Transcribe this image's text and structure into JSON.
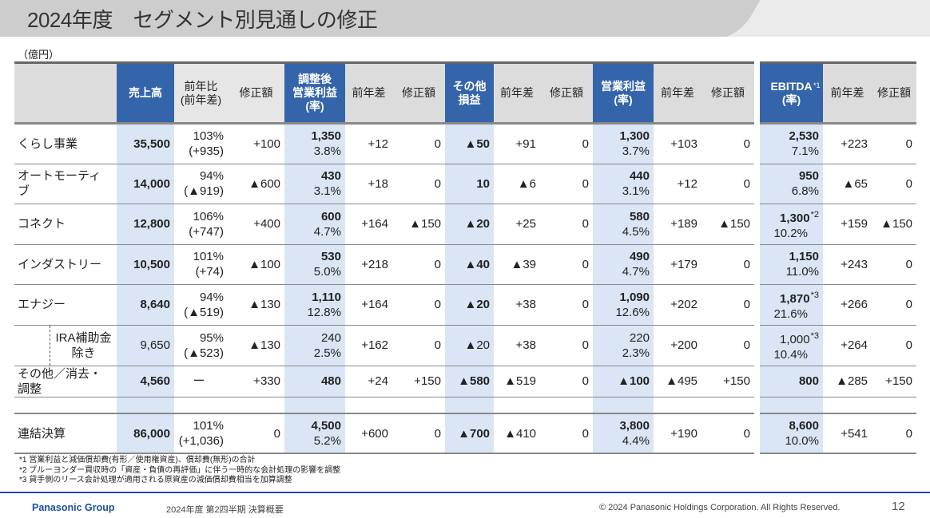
{
  "title": "2024年度　セグメント別見通しの修正",
  "unit": "（億円）",
  "headers": [
    {
      "text": "",
      "cls": ""
    },
    {
      "text": "売上高",
      "cls": "hl"
    },
    {
      "text": "前年比\n(前年差)",
      "cls": "g1"
    },
    {
      "text": "修正額",
      "cls": "g1"
    },
    {
      "text": "調整後\n営業利益\n(率)",
      "cls": "hl"
    },
    {
      "text": "前年差",
      "cls": ""
    },
    {
      "text": "修正額",
      "cls": ""
    },
    {
      "text": "その他\n損益",
      "cls": "hl"
    },
    {
      "text": "前年差",
      "cls": ""
    },
    {
      "text": "修正額",
      "cls": ""
    },
    {
      "text": "営業利益\n(率)",
      "cls": "hl"
    },
    {
      "text": "前年差",
      "cls": ""
    },
    {
      "text": "修正額",
      "cls": ""
    },
    {
      "text": "",
      "cls": "sp"
    },
    {
      "text": "EBITDA\n(率)",
      "cls": "hl",
      "sup": "*1"
    },
    {
      "text": "前年差",
      "cls": ""
    },
    {
      "text": "修正額",
      "cls": ""
    }
  ],
  "rows": [
    {
      "label": "くらし事業",
      "cells": [
        [
          "35,500"
        ],
        [
          "103%",
          "(+935)"
        ],
        [
          "+100"
        ],
        [
          "1,350",
          "3.8%"
        ],
        [
          "+12"
        ],
        [
          "0"
        ],
        [
          "▲50"
        ],
        [
          "+91"
        ],
        [
          "0"
        ],
        [
          "1,300",
          "3.7%"
        ],
        [
          "+103"
        ],
        [
          "0"
        ],
        [
          "2,530",
          "7.1%"
        ],
        [
          "+223"
        ],
        [
          "0"
        ]
      ]
    },
    {
      "label": "オートモーティブ",
      "cells": [
        [
          "14,000"
        ],
        [
          "94%",
          "(▲919)"
        ],
        [
          "▲600"
        ],
        [
          "430",
          "3.1%"
        ],
        [
          "+18"
        ],
        [
          "0"
        ],
        [
          "10"
        ],
        [
          "▲6"
        ],
        [
          "0"
        ],
        [
          "440",
          "3.1%"
        ],
        [
          "+12"
        ],
        [
          "0"
        ],
        [
          "950",
          "6.8%"
        ],
        [
          "▲65"
        ],
        [
          "0"
        ]
      ]
    },
    {
      "label": "コネクト",
      "cells": [
        [
          "12,800"
        ],
        [
          "106%",
          "(+747)"
        ],
        [
          "+400"
        ],
        [
          "600",
          "4.7%"
        ],
        [
          "+164"
        ],
        [
          "▲150"
        ],
        [
          "▲20"
        ],
        [
          "+25"
        ],
        [
          "0"
        ],
        [
          "580",
          "4.5%"
        ],
        [
          "+189"
        ],
        [
          "▲150"
        ],
        [
          "1,300",
          "10.2%",
          "*2"
        ],
        [
          "+159"
        ],
        [
          "▲150"
        ]
      ]
    },
    {
      "label": "インダストリー",
      "cells": [
        [
          "10,500"
        ],
        [
          "101%",
          "(+74)"
        ],
        [
          "▲100"
        ],
        [
          "530",
          "5.0%"
        ],
        [
          "+218"
        ],
        [
          "0"
        ],
        [
          "▲40"
        ],
        [
          "▲39"
        ],
        [
          "0"
        ],
        [
          "490",
          "4.7%"
        ],
        [
          "+179"
        ],
        [
          "0"
        ],
        [
          "1,150",
          "11.0%"
        ],
        [
          "+243"
        ],
        [
          "0"
        ]
      ]
    },
    {
      "label": "エナジー",
      "cells": [
        [
          "8,640"
        ],
        [
          "94%",
          "(▲519)"
        ],
        [
          "▲130"
        ],
        [
          "1,110",
          "12.8%"
        ],
        [
          "+164"
        ],
        [
          "0"
        ],
        [
          "▲20"
        ],
        [
          "+38"
        ],
        [
          "0"
        ],
        [
          "1,090",
          "12.6%"
        ],
        [
          "+202"
        ],
        [
          "0"
        ],
        [
          "1,870",
          "21.6%",
          "*3"
        ],
        [
          "+266"
        ],
        [
          "0"
        ]
      ]
    },
    {
      "label": "IRA補助金\n除き",
      "type": "ira",
      "cells": [
        [
          "9,650"
        ],
        [
          "95%",
          "(▲523)"
        ],
        [
          "▲130"
        ],
        [
          "240",
          "2.5%"
        ],
        [
          "+162"
        ],
        [
          "0"
        ],
        [
          "▲20"
        ],
        [
          "+38"
        ],
        [
          "0"
        ],
        [
          "220",
          "2.3%"
        ],
        [
          "+200"
        ],
        [
          "0"
        ],
        [
          "1,000",
          "10.4%",
          "*3"
        ],
        [
          "+264"
        ],
        [
          "0"
        ]
      ]
    },
    {
      "label": "その他／消去・調整",
      "type": "other",
      "cells": [
        [
          "4,560"
        ],
        [
          "ー"
        ],
        [
          "+330"
        ],
        [
          "480"
        ],
        [
          "+24"
        ],
        [
          "+150"
        ],
        [
          "▲580"
        ],
        [
          "▲519"
        ],
        [
          "0"
        ],
        [
          "▲100"
        ],
        [
          "▲495"
        ],
        [
          "+150"
        ],
        [
          "800"
        ],
        [
          "▲285"
        ],
        [
          "+150"
        ]
      ]
    },
    {
      "label": "連結決算",
      "type": "total",
      "cells": [
        [
          "86,000"
        ],
        [
          "101%",
          "(+1,036)"
        ],
        [
          "0"
        ],
        [
          "4,500",
          "5.2%"
        ],
        [
          "+600"
        ],
        [
          "0"
        ],
        [
          "▲700"
        ],
        [
          "▲410"
        ],
        [
          "0"
        ],
        [
          "3,800",
          "4.4%"
        ],
        [
          "+190"
        ],
        [
          "0"
        ],
        [
          "8,600",
          "10.0%"
        ],
        [
          "+541"
        ],
        [
          "0"
        ]
      ]
    }
  ],
  "notes": [
    "*1  営業利益と減価償却費(有形／使用権資産)、償却費(無形)の合計",
    "*2  ブルーヨンダー買収時の「資産・負債の再評価」に伴う一時的な会計処理の影響を調整",
    "*3  貸手側のリース会計処理が適用される原資産の減価償却費相当を加算調整"
  ],
  "footer": {
    "brand": "Panasonic Group",
    "subtitle": "2024年度 第2四半期  決算概要",
    "copyright": "© 2024 Panasonic Holdings Corporation. All Rights Reserved.",
    "page": "12"
  },
  "colors": {
    "header_blue": "#3465aa",
    "col_highlight": "#dae6f6",
    "footer_blue": "#1f4e9c"
  }
}
